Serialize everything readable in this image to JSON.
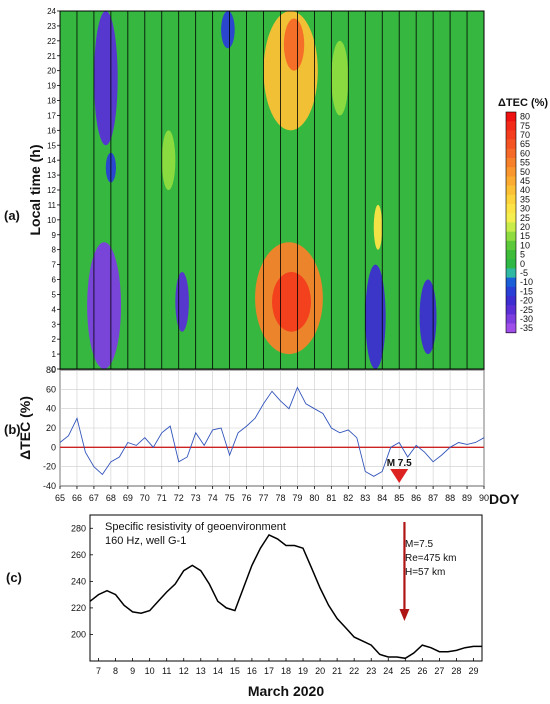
{
  "panel_labels": {
    "a": "(a)",
    "b": "(b)",
    "c": "(c)"
  },
  "colors": {
    "trace": "#3355bb",
    "zero_line": "#cc2222",
    "event_marker": "#dd2222",
    "arrow": "#b01515",
    "frame": "#000000",
    "grid": "#cccccc"
  },
  "chart_data": [
    {
      "type": "heatmap",
      "panel": "(a)",
      "ylabel": "Local  time (h)",
      "xlim": [
        65,
        90
      ],
      "ylim": [
        0,
        24
      ],
      "y_ticks": [
        "0",
        "1",
        "2",
        "3",
        "4",
        "5",
        "6",
        "7",
        "8",
        "9",
        "10",
        "11",
        "12",
        "13",
        "14",
        "15",
        "16",
        "17",
        "18",
        "19",
        "20",
        "21",
        "22",
        "23",
        "24"
      ],
      "colorbar": {
        "title": "ΔTEC (%)",
        "ticks": [
          "80",
          "75",
          "70",
          "65",
          "60",
          "55",
          "50",
          "45",
          "40",
          "35",
          "30",
          "25",
          "20",
          "15",
          "10",
          "5",
          "0",
          "-5",
          "-10",
          "-15",
          "-20",
          "-25",
          "-30",
          "-35"
        ],
        "colors": [
          "#ee1111",
          "#f22a1a",
          "#f33d1e",
          "#f45424",
          "#f56a28",
          "#f7812a",
          "#f9962d",
          "#fbab30",
          "#fcc035",
          "#fdd43b",
          "#fde446",
          "#f4ee4e",
          "#c8ec4a",
          "#8fdc40",
          "#5cc93a",
          "#3fbd3a",
          "#2fb845",
          "#2fb8a2",
          "#1a5fd8",
          "#2a3fd6",
          "#3c2ed0",
          "#5a30d6",
          "#7d3ee0",
          "#a04eea"
        ]
      },
      "regions": [
        {
          "doy": [
            66.6,
            68.6
          ],
          "hours": [
            0,
            8.5
          ],
          "value": -30
        },
        {
          "doy": [
            67.0,
            68.4
          ],
          "hours": [
            15,
            24
          ],
          "value": -25
        },
        {
          "doy": [
            67.7,
            68.3
          ],
          "hours": [
            12.5,
            14.5
          ],
          "value": -15
        },
        {
          "doy": [
            71.8,
            72.6
          ],
          "hours": [
            2.5,
            6.5
          ],
          "value": -25
        },
        {
          "doy": [
            74.5,
            75.3
          ],
          "hours": [
            21.5,
            24
          ],
          "value": -15
        },
        {
          "doy": [
            76.5,
            80.5
          ],
          "hours": [
            1,
            8.5
          ],
          "value": 55
        },
        {
          "doy": [
            77.5,
            79.8
          ],
          "hours": [
            2.5,
            6.5
          ],
          "value": 70
        },
        {
          "doy": [
            77.0,
            80.2
          ],
          "hours": [
            16,
            24
          ],
          "value": 40
        },
        {
          "doy": [
            78.2,
            79.4
          ],
          "hours": [
            20,
            23.5
          ],
          "value": 60
        },
        {
          "doy": [
            83.0,
            84.2
          ],
          "hours": [
            0,
            7
          ],
          "value": -20
        },
        {
          "doy": [
            83.5,
            84.0
          ],
          "hours": [
            8,
            11
          ],
          "value": 30
        },
        {
          "doy": [
            86.2,
            87.2
          ],
          "hours": [
            1,
            6
          ],
          "value": -20
        },
        {
          "doy": [
            81.0,
            82.0
          ],
          "hours": [
            17,
            22
          ],
          "value": 15
        },
        {
          "doy": [
            71.0,
            71.8
          ],
          "hours": [
            12,
            16
          ],
          "value": 15
        }
      ]
    },
    {
      "type": "line",
      "panel": "(b)",
      "ylabel": "ΔTEC (%)",
      "xlabel": "DOY",
      "xlim": [
        65,
        90
      ],
      "ylim": [
        -40,
        80
      ],
      "x_ticks": [
        "65",
        "66",
        "67",
        "68",
        "69",
        "70",
        "71",
        "72",
        "73",
        "74",
        "75",
        "76",
        "77",
        "78",
        "79",
        "80",
        "81",
        "82",
        "83",
        "84",
        "85",
        "86",
        "87",
        "88",
        "89",
        "90"
      ],
      "y_ticks": [
        "80",
        "60",
        "40",
        "20",
        "0",
        "-20",
        "-40"
      ],
      "event": {
        "doy": 85,
        "label": "M 7.5"
      },
      "x": [
        65.0,
        65.5,
        66.0,
        66.5,
        67.0,
        67.5,
        68.0,
        68.5,
        69.0,
        69.5,
        70.0,
        70.5,
        71.0,
        71.5,
        72.0,
        72.5,
        73.0,
        73.5,
        74.0,
        74.5,
        75.0,
        75.5,
        76.0,
        76.5,
        77.0,
        77.5,
        78.0,
        78.5,
        79.0,
        79.5,
        80.0,
        80.5,
        81.0,
        81.5,
        82.0,
        82.5,
        83.0,
        83.5,
        84.0,
        84.5,
        85.0,
        85.5,
        86.0,
        86.5,
        87.0,
        87.5,
        88.0,
        88.5,
        89.0,
        89.5,
        90.0
      ],
      "values": [
        5,
        12,
        30,
        -5,
        -20,
        -28,
        -15,
        -10,
        5,
        2,
        10,
        0,
        15,
        22,
        -15,
        -10,
        15,
        2,
        18,
        20,
        -8,
        15,
        22,
        30,
        45,
        58,
        48,
        40,
        62,
        45,
        40,
        35,
        20,
        15,
        18,
        10,
        -25,
        -30,
        -25,
        0,
        5,
        -10,
        2,
        -5,
        -15,
        -8,
        0,
        5,
        3,
        5,
        10
      ]
    },
    {
      "type": "line",
      "panel": "(c)",
      "title": "Specific resistivity of geoenvironment",
      "subtitle": "160 Hz, well G-1",
      "xlabel": "March 2020",
      "xlim": [
        6.5,
        29.5
      ],
      "ylim": [
        180,
        290
      ],
      "x_ticks": [
        "7",
        "8",
        "9",
        "10",
        "11",
        "12",
        "13",
        "14",
        "15",
        "16",
        "17",
        "18",
        "19",
        "20",
        "21",
        "22",
        "23",
        "24",
        "25",
        "26",
        "27",
        "28",
        "29"
      ],
      "y_ticks": [
        "280",
        "260",
        "240",
        "220",
        "200"
      ],
      "annotation": [
        "M=7.5",
        "Re=475 km",
        "H=57 km"
      ],
      "x": [
        6.5,
        7.0,
        7.5,
        8.0,
        8.5,
        9.0,
        9.5,
        10.0,
        10.5,
        11.0,
        11.5,
        12.0,
        12.5,
        13.0,
        13.5,
        14.0,
        14.5,
        15.0,
        15.5,
        16.0,
        16.5,
        17.0,
        17.5,
        18.0,
        18.5,
        19.0,
        19.5,
        20.0,
        20.5,
        21.0,
        21.5,
        22.0,
        22.5,
        23.0,
        23.5,
        24.0,
        24.5,
        25.0,
        25.5,
        26.0,
        26.5,
        27.0,
        27.5,
        28.0,
        28.5,
        29.0,
        29.5
      ],
      "values": [
        225,
        230,
        233,
        230,
        222,
        217,
        216,
        218,
        225,
        232,
        238,
        248,
        252,
        248,
        238,
        225,
        220,
        218,
        235,
        252,
        265,
        275,
        272,
        267,
        267,
        265,
        250,
        235,
        222,
        212,
        205,
        198,
        195,
        192,
        185,
        183,
        183,
        182,
        186,
        192,
        190,
        187,
        187,
        188,
        190,
        191,
        191
      ]
    }
  ]
}
